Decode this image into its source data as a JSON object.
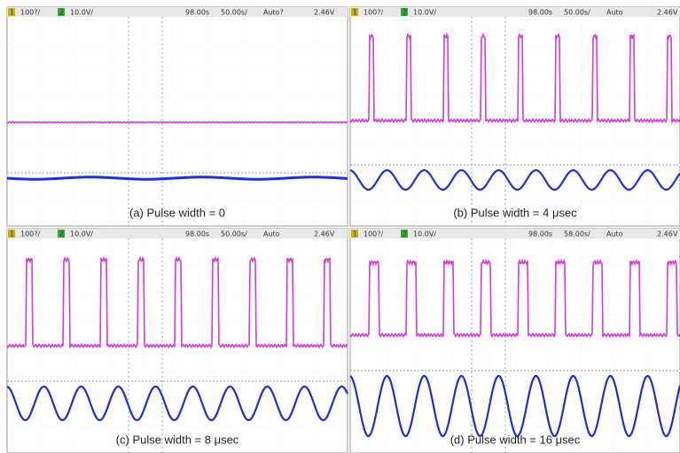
{
  "panels": [
    {
      "status": [
        "1",
        "100?/",
        "2",
        "10.0V/",
        "98.00s",
        "50.00s/",
        "Auto?",
        "2.46V"
      ],
      "caption": "(a) Pulse width = 0"
    },
    {
      "status": [
        "1",
        "100?/",
        "2",
        "10.0V/",
        "98.00s",
        "50.00s/",
        "Auto",
        "2.46V"
      ],
      "caption": "(b) Pulse width = 4 μsec"
    },
    {
      "status": [
        "1",
        "100?/",
        "2",
        "10.0V/",
        "98.00s",
        "50.00s/",
        "Auto",
        "2.46V"
      ],
      "caption": "(c) Pulse width = 8 μsec"
    },
    {
      "status": [
        "1",
        "100?/",
        "2",
        "10.0V/",
        "98.00s",
        "58.00s/",
        "Auto",
        "2.46V"
      ],
      "caption": "(d) Pulse width = 16 μsec"
    }
  ]
}
